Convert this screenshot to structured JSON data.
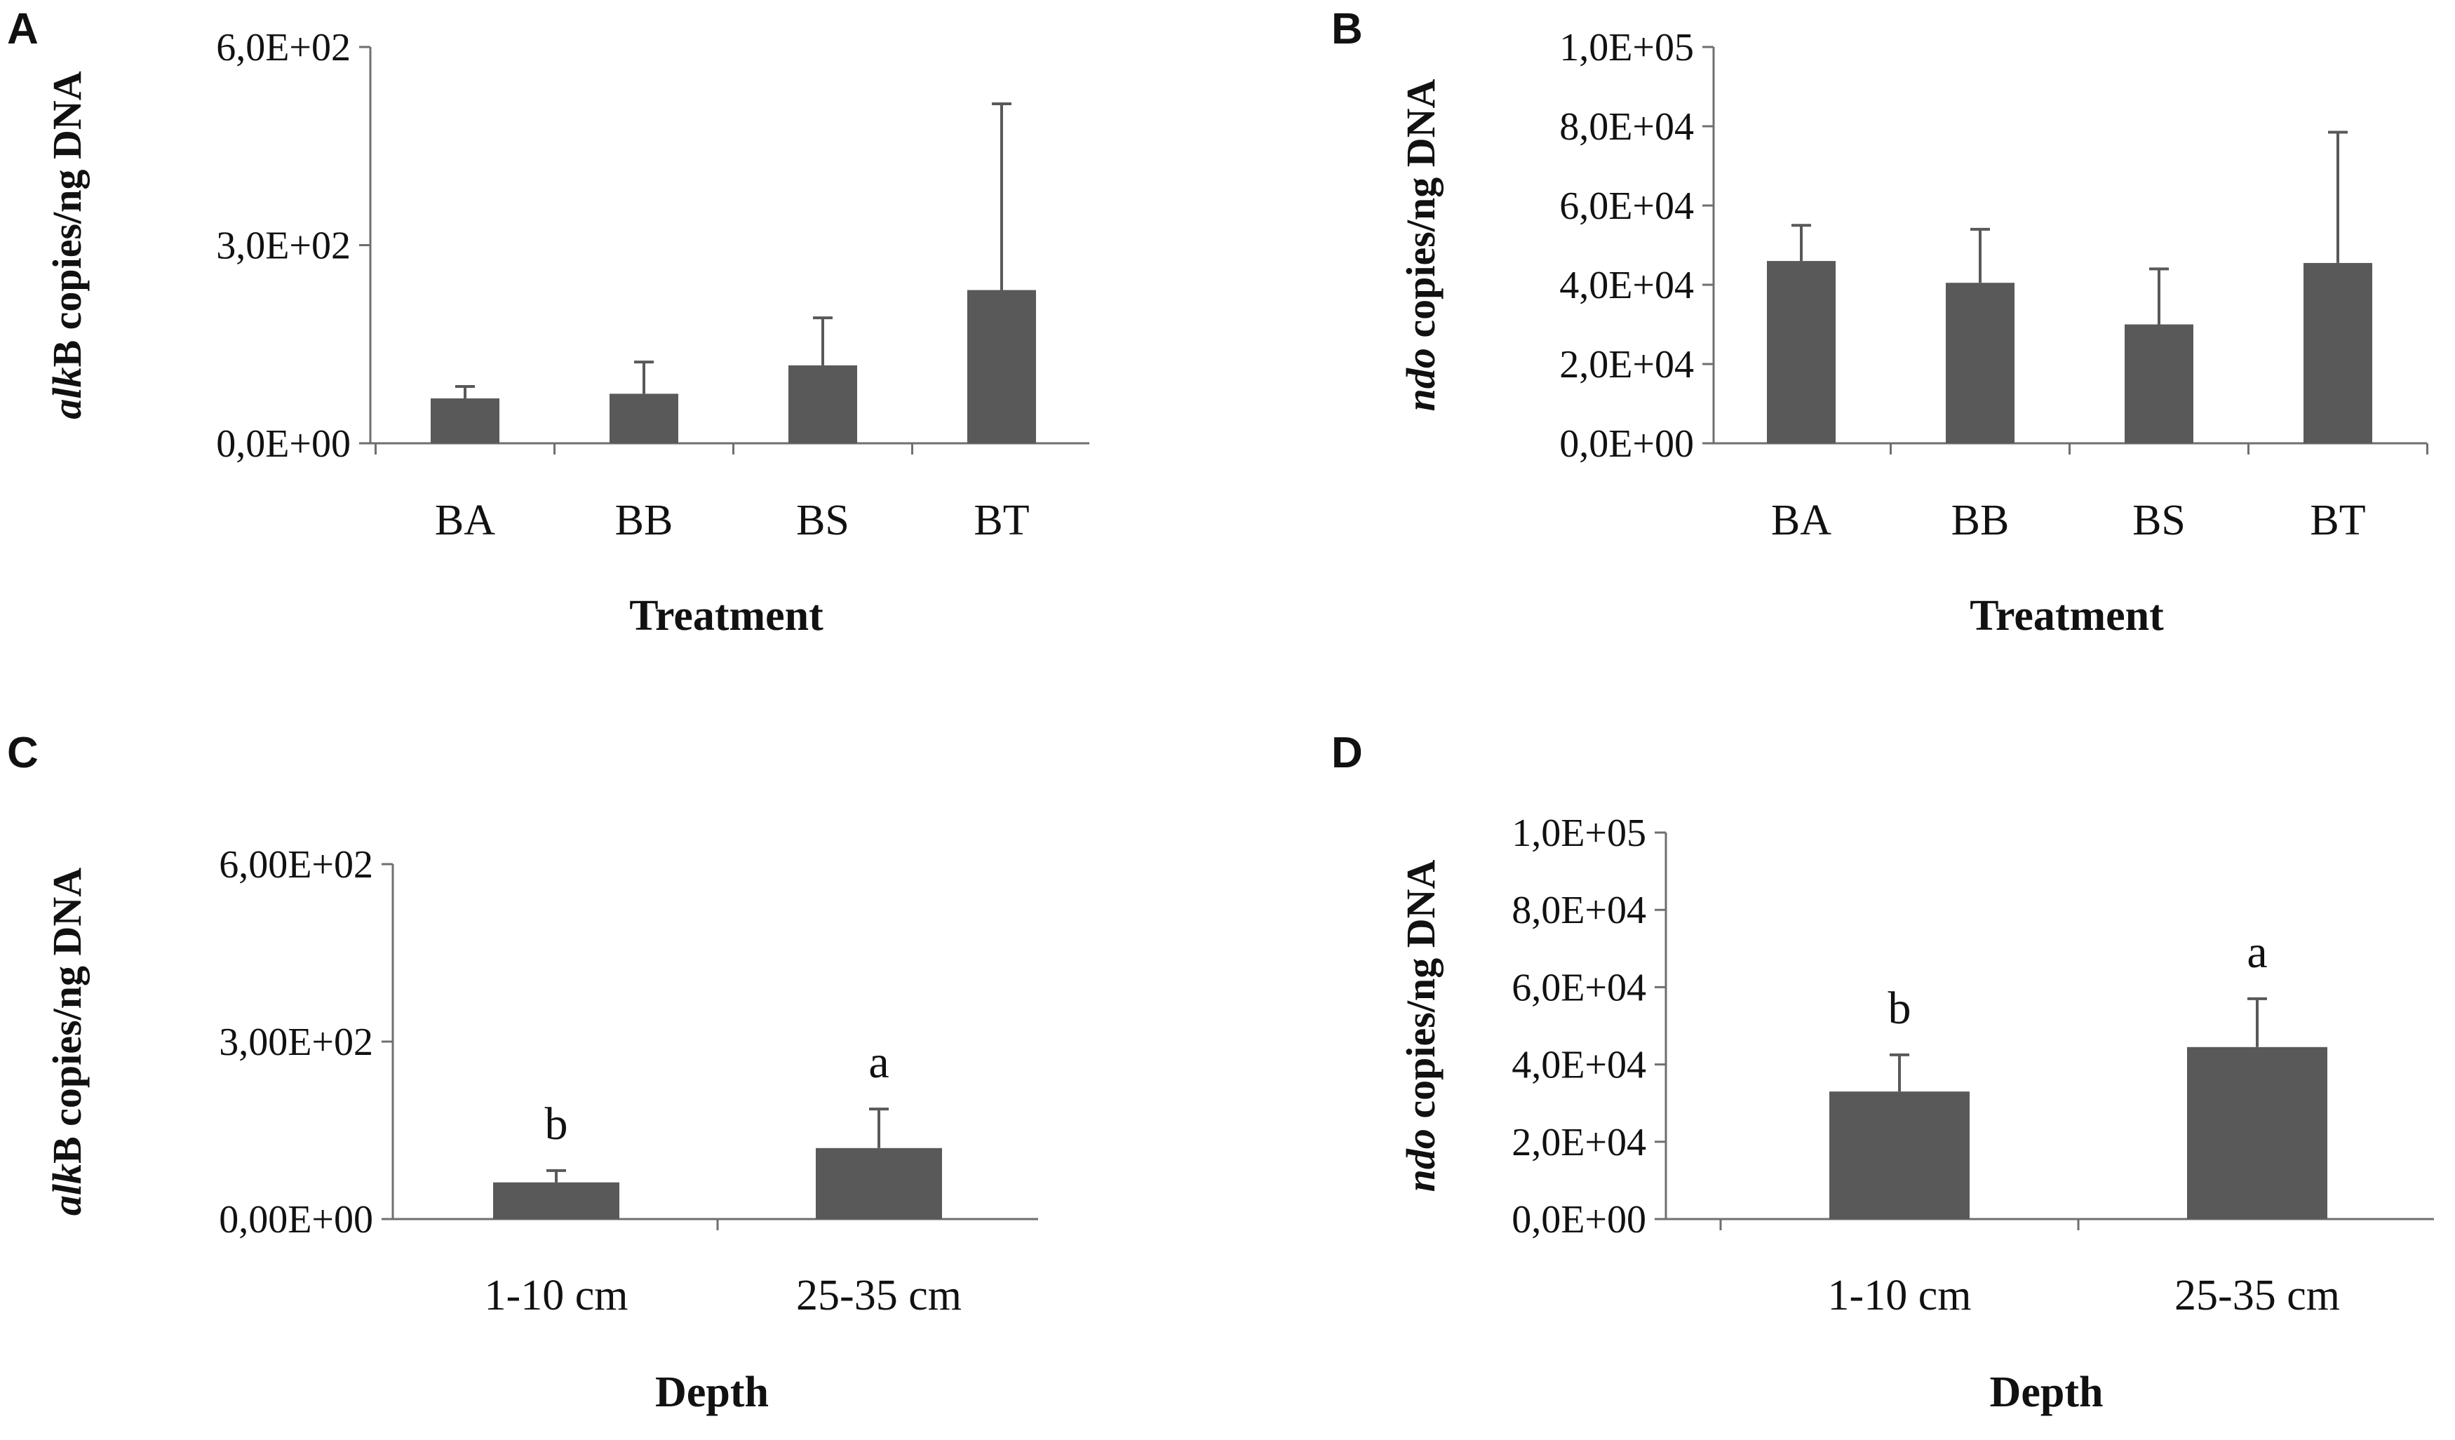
{
  "chart_data": [
    {
      "panel": "A",
      "type": "bar",
      "categories": [
        "BA",
        "BB",
        "BS",
        "BT"
      ],
      "values": [
        68,
        75,
        118,
        232
      ],
      "errors": [
        18,
        48,
        72,
        282
      ],
      "ylim": [
        0,
        600
      ],
      "yticks": [
        0,
        300,
        600
      ],
      "ytick_labels": [
        "0,0E+00",
        "3,0E+02",
        "6,0E+02"
      ],
      "xlabel": "Treatment",
      "ylabel_italic": "alk",
      "ylabel_rest": "B copies/ng DNA",
      "significance": []
    },
    {
      "panel": "B",
      "type": "bar",
      "categories": [
        "BA",
        "BB",
        "BS",
        "BT"
      ],
      "values": [
        46000,
        40500,
        30000,
        45500
      ],
      "errors": [
        9000,
        13500,
        14000,
        33000
      ],
      "ylim": [
        0,
        100000
      ],
      "yticks": [
        0,
        20000,
        40000,
        60000,
        80000,
        100000
      ],
      "ytick_labels": [
        "0,0E+00",
        "2,0E+04",
        "4,0E+04",
        "6,0E+04",
        "8,0E+04",
        "1,0E+05"
      ],
      "xlabel": "Treatment",
      "ylabel_italic": "ndo",
      "ylabel_rest": " copies/ng DNA",
      "significance": []
    },
    {
      "panel": "C",
      "type": "bar",
      "categories": [
        "1-10 cm",
        "25-35 cm"
      ],
      "values": [
        62,
        120
      ],
      "errors": [
        20,
        66
      ],
      "ylim": [
        0,
        600
      ],
      "yticks": [
        0,
        300,
        600
      ],
      "ytick_labels": [
        "0,00E+00",
        "3,00E+02",
        "6,00E+02"
      ],
      "xlabel": "Depth",
      "ylabel_italic": "alk",
      "ylabel_rest": "B copies/ng DNA",
      "significance": [
        "b",
        "a"
      ]
    },
    {
      "panel": "D",
      "type": "bar",
      "categories": [
        "1-10 cm",
        "25-35 cm"
      ],
      "values": [
        33000,
        44500
      ],
      "errors": [
        9500,
        12500
      ],
      "ylim": [
        0,
        100000
      ],
      "yticks": [
        0,
        20000,
        40000,
        60000,
        80000,
        100000
      ],
      "ytick_labels": [
        "0,0E+00",
        "2,0E+04",
        "4,0E+04",
        "6,0E+04",
        "8,0E+04",
        "1,0E+05"
      ],
      "xlabel": "Depth",
      "ylabel_italic": "ndo",
      "ylabel_rest": " copies/ng DNA",
      "significance": [
        "b",
        "a"
      ]
    }
  ]
}
